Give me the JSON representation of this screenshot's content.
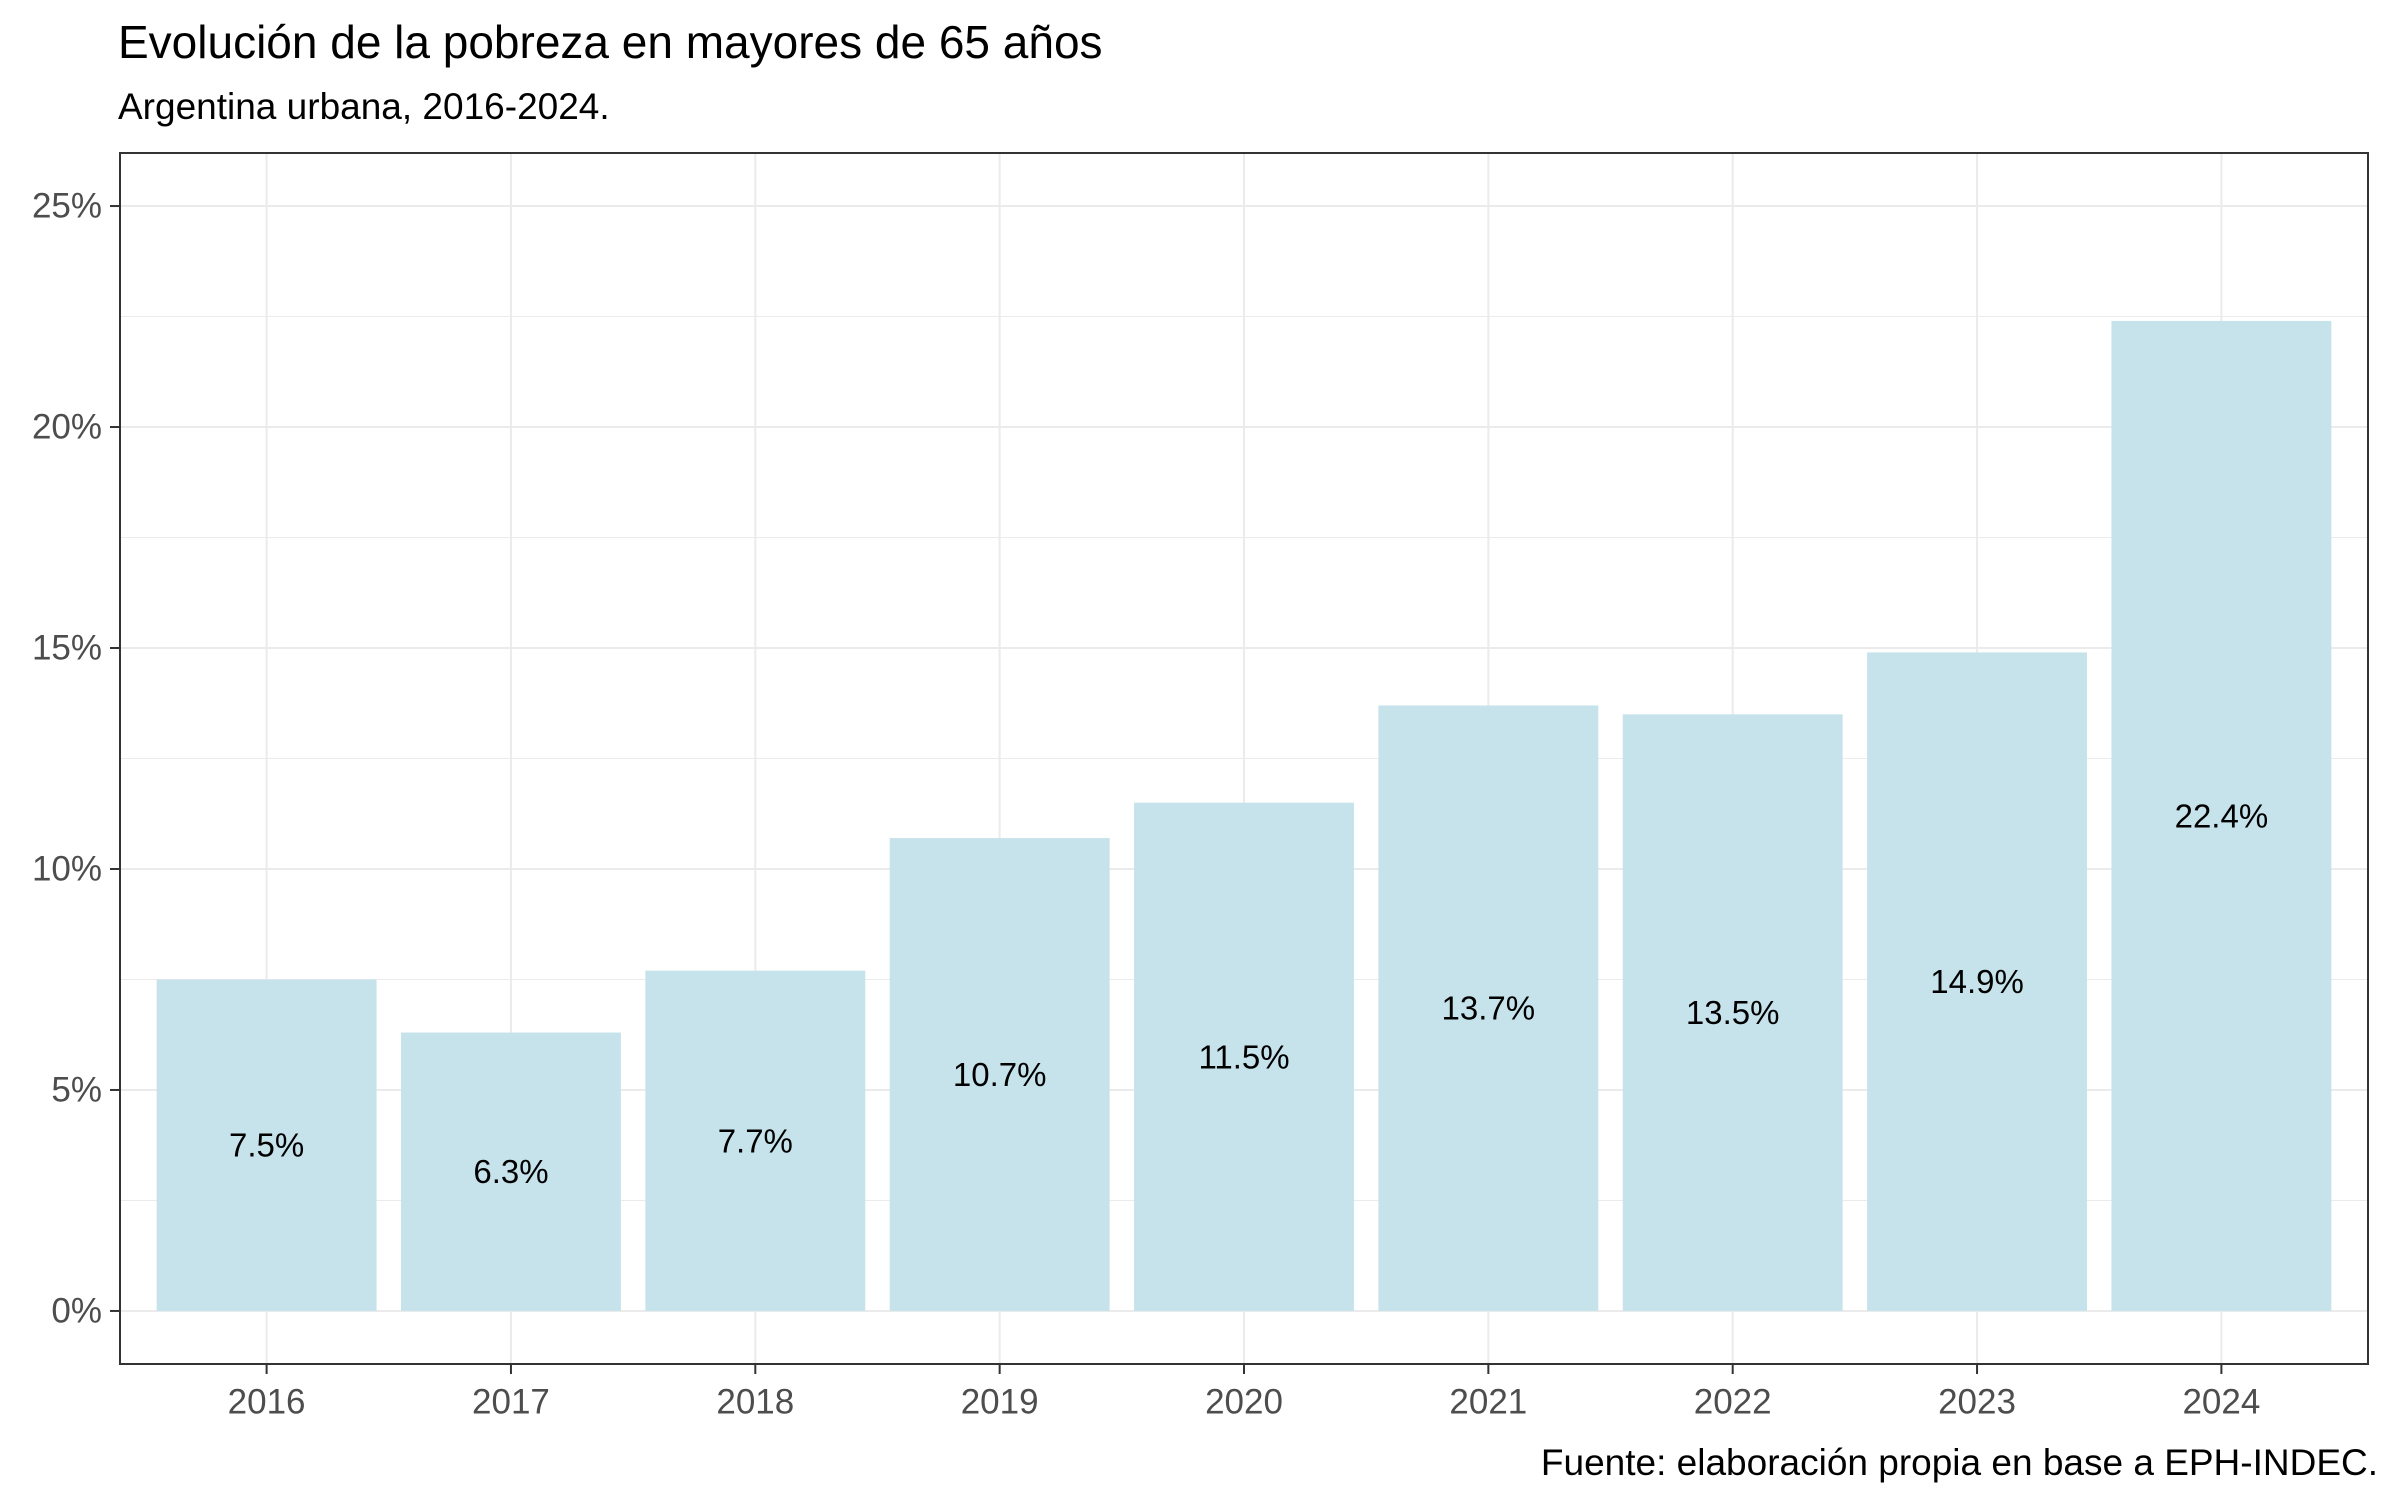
{
  "chart_data": {
    "type": "bar",
    "title": "Evolución de la pobreza en mayores de 65 años",
    "subtitle": "Argentina urbana, 2016-2024.",
    "caption": "Fuente: elaboración propia en base a EPH-INDEC.",
    "xlabel": "",
    "ylabel": "",
    "categories": [
      "2016",
      "2017",
      "2018",
      "2019",
      "2020",
      "2021",
      "2022",
      "2023",
      "2024"
    ],
    "values": [
      7.5,
      6.3,
      7.7,
      10.7,
      11.5,
      13.7,
      13.5,
      14.9,
      22.4
    ],
    "value_labels": [
      "7.5%",
      "6.3%",
      "7.7%",
      "10.7%",
      "11.5%",
      "13.7%",
      "13.5%",
      "14.9%",
      "22.4%"
    ],
    "y_ticks": [
      0,
      5,
      10,
      15,
      20,
      25
    ],
    "y_tick_labels": [
      "0%",
      "5%",
      "10%",
      "15%",
      "20%",
      "25%"
    ],
    "ylim": [
      -1.2,
      26.2
    ],
    "grid": true,
    "legend": "none",
    "colors": {
      "bar": "#c6e3ec",
      "grid": "#ebebeb",
      "panel_border": "#333333",
      "tick_label": "#4d4d4d"
    }
  }
}
